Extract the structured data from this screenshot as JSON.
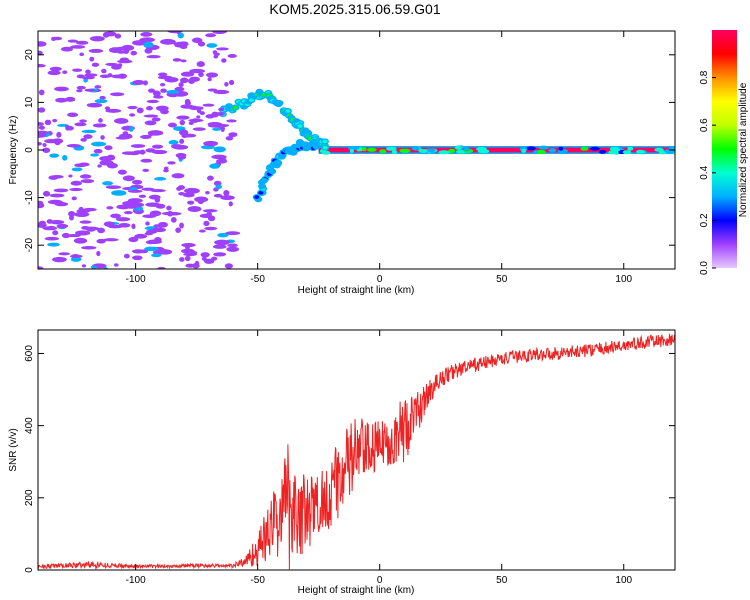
{
  "title": "KOM5.2025.315.06.59.G01",
  "chart_data": [
    {
      "type": "heatmap",
      "title": "KOM5.2025.315.06.59.G01",
      "xlabel": "Height of straight line (km)",
      "ylabel": "Frequency (Hz)",
      "xlim": [
        -140,
        121
      ],
      "ylim": [
        -25,
        25
      ],
      "xticks": [
        -100,
        -50,
        0,
        50,
        100
      ],
      "xtick_labels": [
        "-100",
        "-50",
        "0",
        "50",
        "100"
      ],
      "yticks": [
        -20,
        -10,
        0,
        10,
        20
      ],
      "ytick_labels": [
        "-20",
        "-10",
        "0",
        "10",
        "20"
      ],
      "colorbar": {
        "label": "Normalized spectral amplitude",
        "range": [
          0,
          1
        ],
        "ticks": [
          0.0,
          0.2,
          0.4,
          0.6,
          0.8
        ],
        "tick_labels": [
          "0.0",
          "0.2",
          "0.4",
          "0.6",
          "0.8"
        ],
        "colormap": "rainbow",
        "colors": [
          "#e8c8ff",
          "#a040ff",
          "#0000ff",
          "#00b0ff",
          "#00ffd0",
          "#00ff00",
          "#c0ff00",
          "#ffff00",
          "#ff9000",
          "#ff0000",
          "#ff0060"
        ]
      },
      "features": [
        {
          "name": "carrier",
          "x_range": [
            -25,
            121
          ],
          "frequency": 0,
          "amplitude": 0.95
        },
        {
          "name": "arc-branch",
          "points": [
            [
              -65,
              8
            ],
            [
              -55,
              10
            ],
            [
              -48,
              12
            ],
            [
              -40,
              9
            ],
            [
              -33,
              5
            ],
            [
              -27,
              2
            ],
            [
              -22,
              1
            ]
          ],
          "amplitude": 0.4
        },
        {
          "name": "lower-branch",
          "points": [
            [
              -50,
              -10
            ],
            [
              -45,
              -4
            ],
            [
              -40,
              -1
            ],
            [
              -33,
              1
            ],
            [
              -25,
              1
            ]
          ],
          "amplitude": 0.3
        },
        {
          "name": "noise-region",
          "x_range": [
            -140,
            -60
          ],
          "frequency_range": [
            -25,
            25
          ],
          "amplitude": 0.1
        }
      ]
    },
    {
      "type": "line",
      "title": "",
      "xlabel": "Height of straight line (km)",
      "ylabel": "SNR (v/v)",
      "xlim": [
        -140,
        121
      ],
      "ylim": [
        0,
        665
      ],
      "xticks": [
        -100,
        -50,
        0,
        50,
        100
      ],
      "xtick_labels": [
        "-100",
        "-50",
        "0",
        "50",
        "100"
      ],
      "yticks": [
        0,
        200,
        400,
        600
      ],
      "ytick_labels": [
        "0",
        "200",
        "400",
        "600"
      ],
      "series": [
        {
          "name": "SNR",
          "color": "#ee2222",
          "x": [
            -140,
            -130,
            -120,
            -110,
            -100,
            -90,
            -80,
            -70,
            -60,
            -55,
            -50,
            -45,
            -40,
            -37,
            -35,
            -30,
            -25,
            -20,
            -15,
            -10,
            -5,
            0,
            5,
            10,
            15,
            20,
            25,
            30,
            40,
            50,
            60,
            70,
            80,
            90,
            100,
            110,
            121
          ],
          "mean": [
            10,
            12,
            15,
            13,
            10,
            10,
            12,
            12,
            12,
            25,
            55,
            110,
            160,
            200,
            170,
            150,
            180,
            220,
            270,
            320,
            330,
            345,
            360,
            390,
            430,
            490,
            530,
            550,
            570,
            585,
            595,
            600,
            605,
            612,
            622,
            632,
            638
          ],
          "jitter": [
            6,
            6,
            10,
            6,
            5,
            5,
            5,
            5,
            6,
            15,
            45,
            90,
            120,
            200,
            150,
            110,
            100,
            100,
            110,
            120,
            80,
            70,
            70,
            100,
            60,
            35,
            25,
            22,
            20,
            18,
            18,
            18,
            18,
            18,
            18,
            18,
            18
          ]
        }
      ]
    }
  ]
}
